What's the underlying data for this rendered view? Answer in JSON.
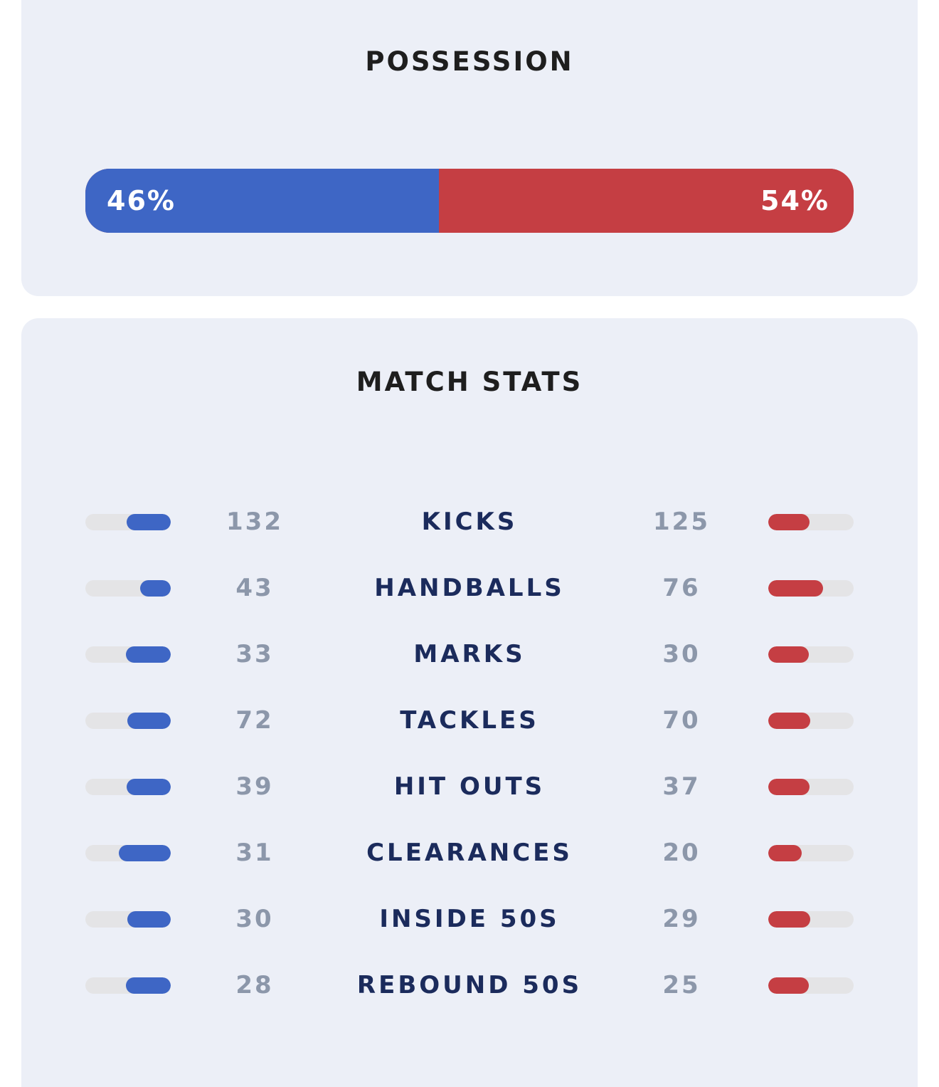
{
  "possession": {
    "title": "POSSESSION",
    "home_percent": 46,
    "away_percent": 54,
    "home_label": "46%",
    "away_label": "54%"
  },
  "match_stats": {
    "title": "MATCH STATS",
    "rows": [
      {
        "label": "KICKS",
        "home": "132",
        "away": "125"
      },
      {
        "label": "HANDBALLS",
        "home": "43",
        "away": "76"
      },
      {
        "label": "MARKS",
        "home": "33",
        "away": "30"
      },
      {
        "label": "TACKLES",
        "home": "72",
        "away": "70"
      },
      {
        "label": "HIT OUTS",
        "home": "39",
        "away": "37"
      },
      {
        "label": "CLEARANCES",
        "home": "31",
        "away": "20"
      },
      {
        "label": "INSIDE 50S",
        "home": "30",
        "away": "29"
      },
      {
        "label": "REBOUND 50S",
        "home": "28",
        "away": "25"
      }
    ]
  },
  "colors": {
    "home": "#3E66C5",
    "away": "#C53E43",
    "card_background": "#ECEFF7",
    "stat_label": "#1B2B5C",
    "stat_value": "#8C97AA"
  }
}
